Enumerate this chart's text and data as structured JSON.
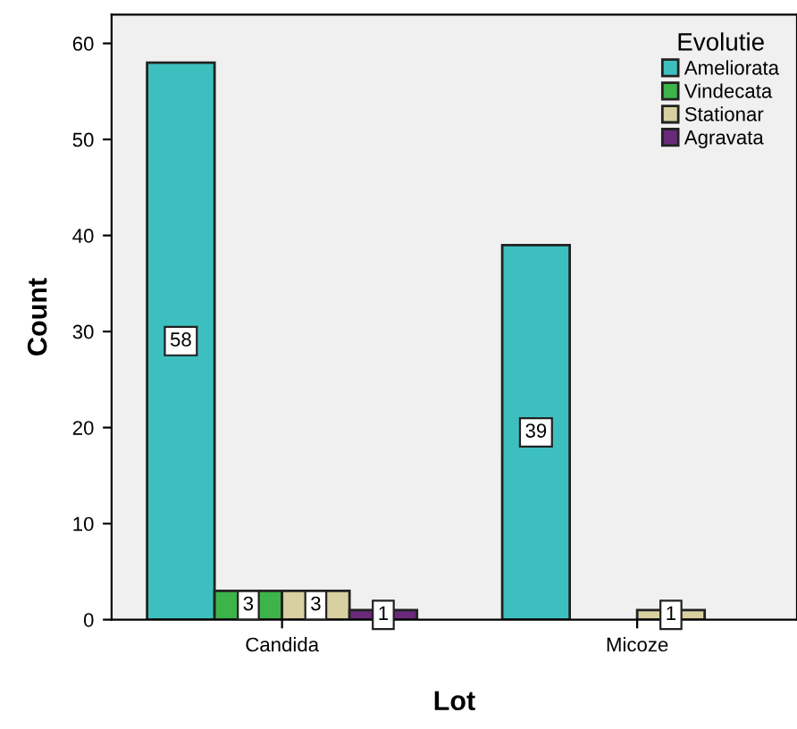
{
  "chart_data": {
    "type": "bar",
    "xlabel": "Lot",
    "ylabel": "Count",
    "legend_title": "Evolutie",
    "legend": "top right",
    "categories": [
      "Candida",
      "Micoze"
    ],
    "series": [
      {
        "name": "Ameliorata",
        "color": "#3ebfbf",
        "values": [
          58,
          39
        ]
      },
      {
        "name": "Vindecata",
        "color": "#3cb44a",
        "values": [
          3,
          null
        ]
      },
      {
        "name": "Stationar",
        "color": "#d8d0a0",
        "values": [
          3,
          1
        ]
      },
      {
        "name": "Agravata",
        "color": "#6a2a7a",
        "values": [
          1,
          null
        ]
      }
    ],
    "data_labels": true,
    "ylim": [
      0,
      63
    ],
    "yticks": [
      0,
      10,
      20,
      30,
      40,
      50,
      60
    ],
    "grid": false
  }
}
